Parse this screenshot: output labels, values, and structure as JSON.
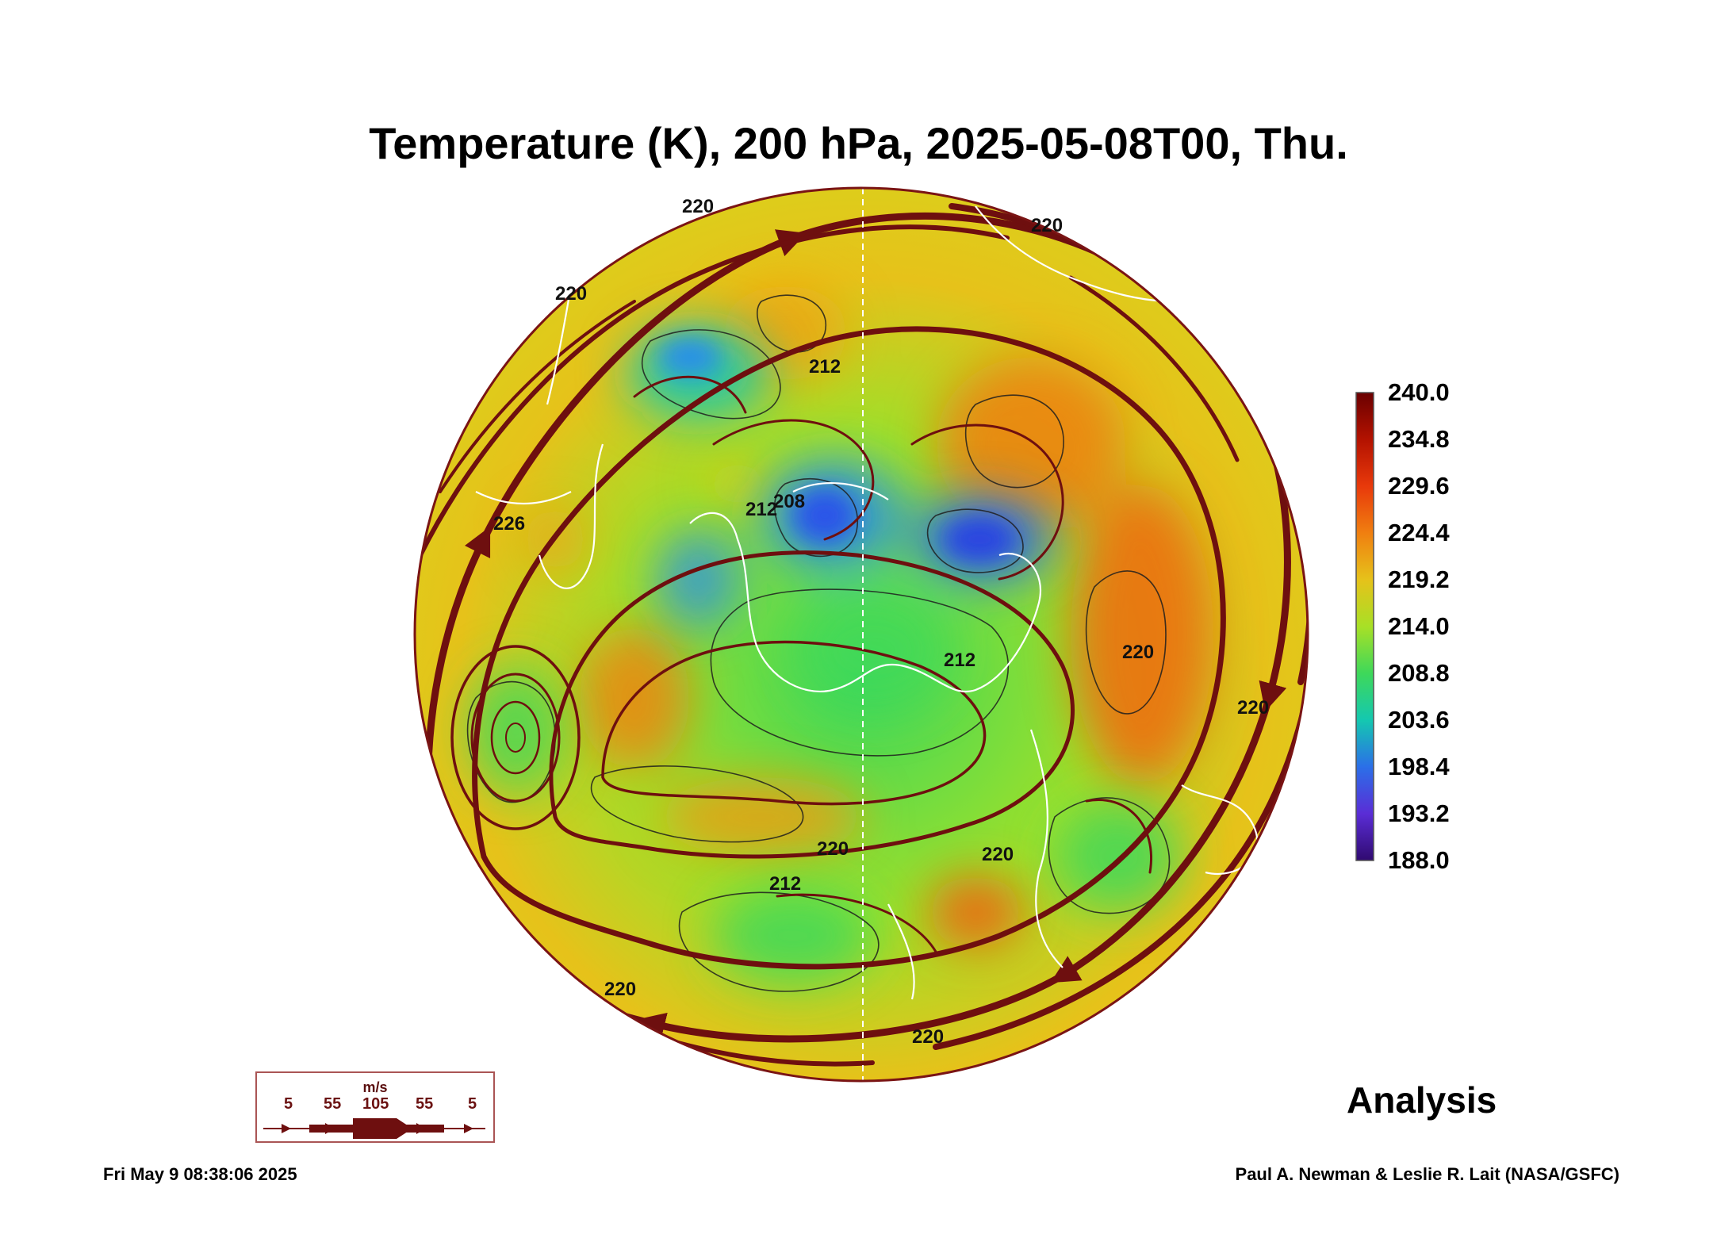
{
  "title": "Temperature (K), 200 hPa, 2025-05-08T00, Thu.",
  "colorbar": {
    "ticks": [
      "240.0",
      "234.8",
      "229.6",
      "224.4",
      "219.2",
      "214.0",
      "208.8",
      "203.6",
      "198.4",
      "193.2",
      "188.0"
    ],
    "min": 188.0,
    "max": 240.0,
    "colors": [
      "#6a0000",
      "#b31200",
      "#e8390b",
      "#f07f10",
      "#e6c21a",
      "#a8e026",
      "#3ed85a",
      "#14c8b0",
      "#2b6fe8",
      "#5a2dd6",
      "#300a70"
    ]
  },
  "contour_labels": [
    "220",
    "220",
    "220",
    "212",
    "212",
    "208",
    "226",
    "220",
    "220",
    "212",
    "220",
    "220",
    "212",
    "220",
    "220"
  ],
  "wind_legend": {
    "unit": "m/s",
    "values": [
      "5",
      "55",
      "105",
      "55",
      "5"
    ]
  },
  "analysis_label": "Analysis",
  "footer": {
    "timestamp": "Fri May  9 08:38:06 2025",
    "credit": "Paul A. Newman & Leslie R. Lait (NASA/GSFC)"
  },
  "colors": {
    "streamline": "#6e0f0f",
    "coast": "#ffffff",
    "contour": "#1f1f1f"
  }
}
